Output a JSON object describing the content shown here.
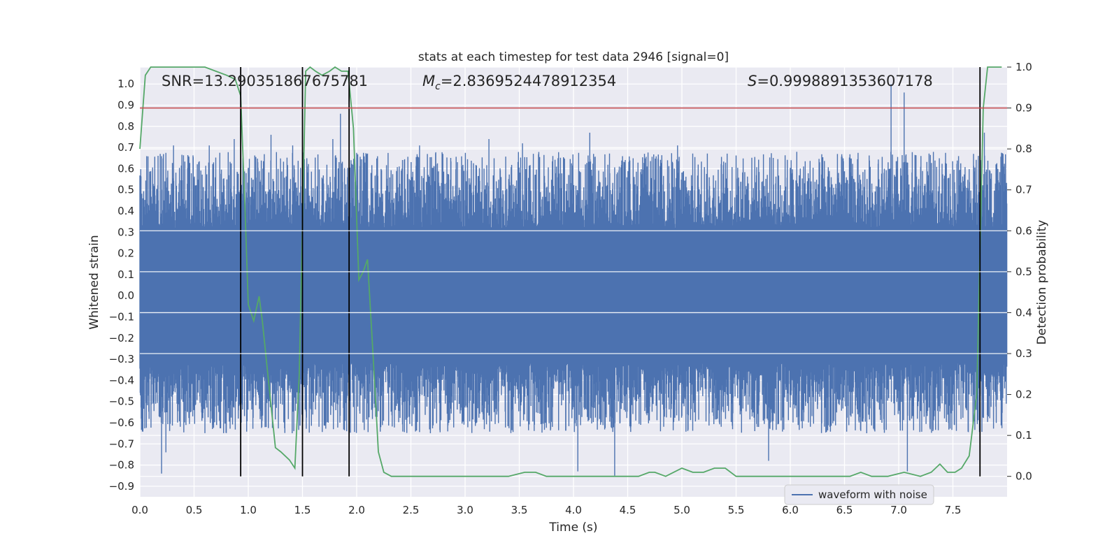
{
  "chart_data": {
    "type": "line",
    "title": "stats at each timestep for test data 2946 [signal=0]",
    "xlabel": "Time (s)",
    "ylabel": "Whitened strain",
    "ylabel_right": "Detection probability",
    "xlim": [
      0.0,
      8.0
    ],
    "ylim": [
      -0.95,
      1.08
    ],
    "ylim_right": [
      -0.05,
      1.0
    ],
    "grid": true,
    "x_ticks": [
      "0.0",
      "0.5",
      "1.0",
      "1.5",
      "2.0",
      "2.5",
      "3.0",
      "3.5",
      "4.0",
      "4.5",
      "5.0",
      "5.5",
      "6.0",
      "6.5",
      "7.0",
      "7.5"
    ],
    "y_ticks": [
      "1.0",
      "0.9",
      "0.8",
      "0.7",
      "0.6",
      "0.5",
      "0.4",
      "0.3",
      "0.2",
      "0.1",
      "0.0",
      "-0.1",
      "-0.2",
      "-0.3",
      "-0.4",
      "-0.5",
      "-0.6",
      "-0.7",
      "-0.8",
      "-0.9"
    ],
    "y_ticks_right": [
      "1.0",
      "0.9",
      "0.8",
      "0.7",
      "0.6",
      "0.5",
      "0.4",
      "0.3",
      "0.2",
      "0.1",
      "0.0"
    ],
    "annotations": {
      "snr": "SNR=13.290351867675781",
      "mc_symbol": "M",
      "mc_sub": "c",
      "mc_value": "=2.8369524478912354",
      "s_symbol": "S",
      "s_value": "=0.9998891353607178"
    },
    "threshold": {
      "value": 0.9,
      "axis": "right",
      "color": "#c44e52"
    },
    "vlines": [
      0.93,
      1.5,
      1.93,
      7.75
    ],
    "legend": {
      "label": "waveform with noise",
      "placement": "lower-right"
    },
    "series": [
      {
        "name": "waveform with noise",
        "color": "#4c72b0",
        "kind": "noise_envelope",
        "x_range": [
          0.0,
          8.0
        ],
        "core_band": [
          -0.3,
          0.3
        ],
        "spikes": [
          {
            "x": 0.2,
            "y": -0.84
          },
          {
            "x": 0.24,
            "y": -0.74
          },
          {
            "x": 0.31,
            "y": 0.71
          },
          {
            "x": 0.64,
            "y": 0.71
          },
          {
            "x": 0.87,
            "y": 0.74
          },
          {
            "x": 1.21,
            "y": 0.76
          },
          {
            "x": 1.41,
            "y": 0.71
          },
          {
            "x": 1.78,
            "y": 0.74
          },
          {
            "x": 1.85,
            "y": 0.86
          },
          {
            "x": 2.58,
            "y": 0.71
          },
          {
            "x": 3.22,
            "y": 0.74
          },
          {
            "x": 3.53,
            "y": 0.72
          },
          {
            "x": 4.04,
            "y": -0.83
          },
          {
            "x": 4.15,
            "y": 0.77
          },
          {
            "x": 4.38,
            "y": -0.85
          },
          {
            "x": 4.96,
            "y": 0.71
          },
          {
            "x": 5.8,
            "y": -0.78
          },
          {
            "x": 6.93,
            "y": 1.0
          },
          {
            "x": 7.05,
            "y": 0.96
          },
          {
            "x": 7.08,
            "y": -0.83
          },
          {
            "x": 7.79,
            "y": 0.77
          }
        ]
      },
      {
        "name": "",
        "color": "#55a868",
        "axis": "right",
        "x": [
          0.0,
          0.05,
          0.1,
          0.2,
          0.4,
          0.6,
          0.7,
          0.8,
          0.88,
          0.93,
          0.97,
          1.0,
          1.05,
          1.1,
          1.13,
          1.18,
          1.25,
          1.3,
          1.38,
          1.43,
          1.47,
          1.53,
          1.57,
          1.62,
          1.68,
          1.75,
          1.8,
          1.86,
          1.92,
          1.97,
          2.02,
          2.06,
          2.1,
          2.15,
          2.2,
          2.25,
          2.32,
          2.5,
          2.65,
          2.8,
          3.0,
          3.2,
          3.4,
          3.55,
          3.65,
          3.75,
          4.0,
          4.3,
          4.6,
          4.7,
          4.75,
          4.85,
          5.0,
          5.1,
          5.2,
          5.3,
          5.4,
          5.5,
          5.7,
          6.0,
          6.3,
          6.55,
          6.65,
          6.75,
          6.9,
          7.05,
          7.2,
          7.3,
          7.38,
          7.45,
          7.52,
          7.58,
          7.65,
          7.72,
          7.78,
          7.82,
          7.88,
          7.95
        ],
        "y": [
          0.8,
          0.98,
          1.0,
          1.0,
          1.0,
          1.0,
          0.99,
          0.98,
          0.97,
          0.93,
          0.65,
          0.42,
          0.38,
          0.44,
          0.38,
          0.25,
          0.07,
          0.06,
          0.04,
          0.02,
          0.25,
          0.99,
          1.0,
          0.99,
          0.98,
          0.99,
          1.0,
          0.99,
          0.99,
          0.85,
          0.48,
          0.5,
          0.53,
          0.3,
          0.06,
          0.01,
          0.0,
          0.0,
          0.0,
          0.0,
          0.0,
          0.0,
          0.0,
          0.01,
          0.01,
          0.0,
          0.0,
          0.0,
          0.0,
          0.01,
          0.01,
          0.0,
          0.02,
          0.01,
          0.01,
          0.02,
          0.02,
          0.0,
          0.0,
          0.0,
          0.0,
          0.0,
          0.01,
          0.0,
          0.0,
          0.01,
          0.0,
          0.01,
          0.03,
          0.01,
          0.01,
          0.02,
          0.05,
          0.2,
          0.9,
          1.0,
          1.0,
          1.0
        ]
      }
    ]
  }
}
